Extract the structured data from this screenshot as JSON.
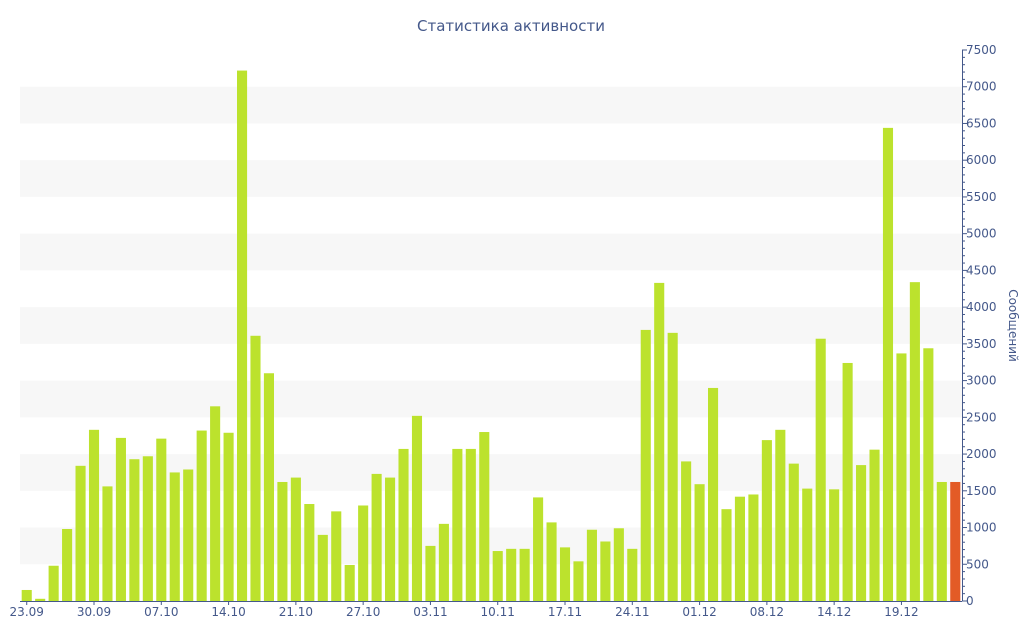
{
  "chart_data": {
    "type": "bar",
    "title": "Статистика активности",
    "xlabel": "",
    "ylabel": "Сообщений",
    "ylim": [
      0,
      7500
    ],
    "y_axis_position": "right",
    "y_ticks": [
      0,
      500,
      1000,
      1500,
      2000,
      2500,
      3000,
      3500,
      4000,
      4500,
      5000,
      5500,
      6000,
      6500,
      7000,
      7500
    ],
    "x_tick_labels": [
      "23.09",
      "30.09",
      "07.10",
      "14.10",
      "21.10",
      "27.10",
      "03.11",
      "10.11",
      "17.11",
      "24.11",
      "01.12",
      "08.12",
      "14.12",
      "19.12"
    ],
    "grid": "horizontal alternating bands",
    "colors": {
      "bar": "#bce22d",
      "highlight": "#e35b26",
      "text": "#44588a",
      "band": "#f7f7f7"
    },
    "highlight_last": true,
    "values": [
      150,
      30,
      480,
      980,
      1840,
      2330,
      1560,
      2220,
      1930,
      1970,
      2210,
      1750,
      1790,
      2320,
      2650,
      2290,
      7220,
      3610,
      3100,
      1620,
      1680,
      1320,
      900,
      1220,
      490,
      1300,
      1730,
      1680,
      2070,
      2520,
      750,
      1050,
      2070,
      2070,
      2300,
      680,
      710,
      710,
      1410,
      1070,
      730,
      540,
      970,
      810,
      990,
      710,
      3690,
      4330,
      3650,
      1900,
      1590,
      2900,
      1250,
      1420,
      1450,
      2190,
      2330,
      1870,
      1530,
      3570,
      1520,
      3240,
      1850,
      2060,
      6440,
      3370,
      4340,
      3440,
      1620,
      1620
    ]
  }
}
